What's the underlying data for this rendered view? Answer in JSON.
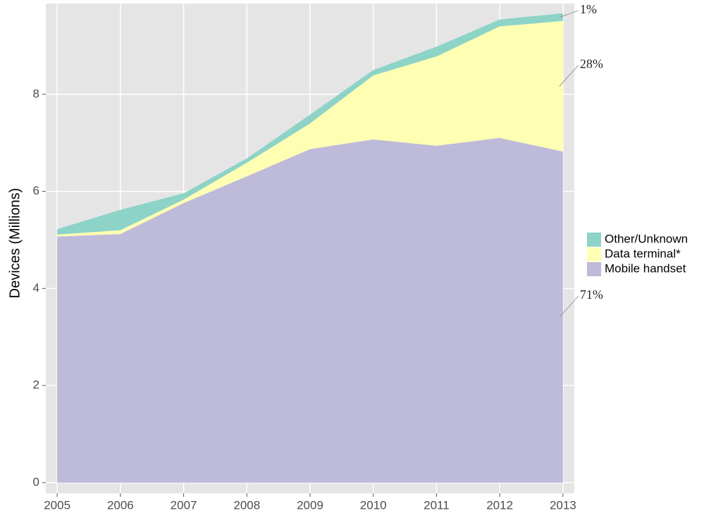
{
  "chart_data": {
    "type": "stacked_area",
    "y_label": "Devices (Millions)",
    "x": [
      2005,
      2006,
      2007,
      2008,
      2009,
      2010,
      2011,
      2012,
      2013
    ],
    "xlim": [
      2004.82,
      2013.18
    ],
    "xticks": [
      2005,
      2006,
      2007,
      2008,
      2009,
      2010,
      2011,
      2012,
      2013
    ],
    "ylim": [
      -0.22,
      9.87
    ],
    "yticks": [
      0,
      2,
      4,
      6,
      8
    ],
    "grid": true,
    "legend": "right",
    "series": [
      {
        "name": "Mobile handset",
        "color": "#bebada",
        "label": "71%",
        "values": [
          5.07,
          5.12,
          5.76,
          6.31,
          6.87,
          7.07,
          6.94,
          7.1,
          6.82
        ]
      },
      {
        "name": "Data terminal*",
        "color": "#ffffb3",
        "label": "28%",
        "values": [
          0.04,
          0.08,
          0.07,
          0.28,
          0.53,
          1.32,
          1.84,
          2.3,
          2.69
        ]
      },
      {
        "name": "Other/Unknown",
        "color": "#8dd3c7",
        "label": "1%",
        "values": [
          0.11,
          0.42,
          0.13,
          0.09,
          0.18,
          0.11,
          0.2,
          0.14,
          0.16
        ]
      }
    ]
  }
}
